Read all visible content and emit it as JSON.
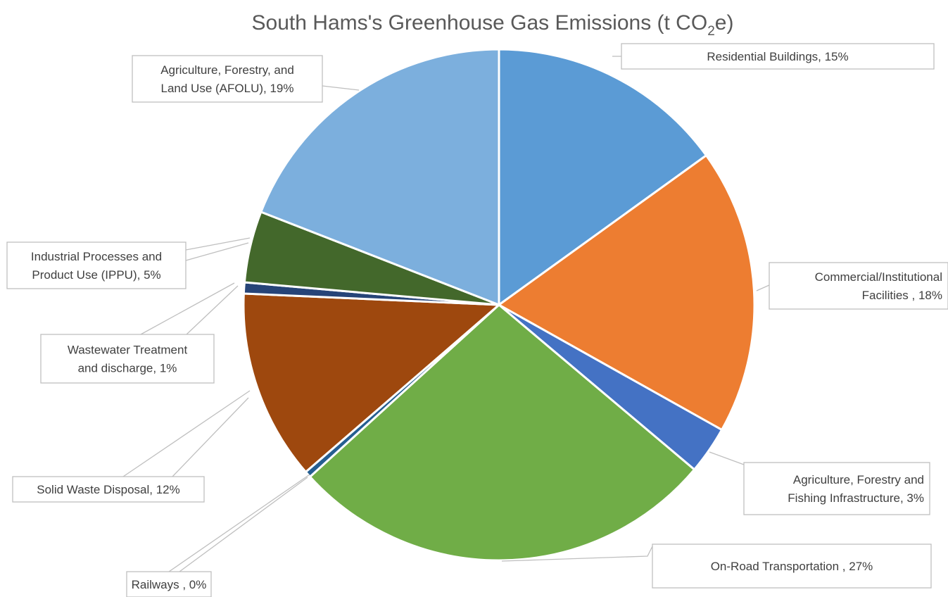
{
  "chart_data": {
    "type": "pie",
    "title": {
      "prefix": "South Hams's Greenhouse Gas Emissions (t CO",
      "subscript": "2",
      "suffix": "e)"
    },
    "slices": [
      {
        "name": "Residential Buildings",
        "value": 15,
        "display": "15%",
        "color": "#5B9BD5"
      },
      {
        "name": "Commercial/Institutional Facilities ",
        "value": 18,
        "display": "18%",
        "color": "#ED7D31"
      },
      {
        "name": "Agriculture, Forestry and Fishing Infrastructure",
        "value": 3,
        "display": "3%",
        "color": "#4472C4"
      },
      {
        "name": "On-Road Transportation ",
        "value": 27,
        "display": "27%",
        "color": "#70AD47"
      },
      {
        "name": "Railways ",
        "value": 0.4,
        "display": "0%",
        "color": "#255E91"
      },
      {
        "name": "Solid Waste Disposal",
        "value": 12,
        "display": "12%",
        "color": "#9E480E"
      },
      {
        "name": "Wastewater Treatment and discharge",
        "value": 0.7,
        "display": "1%",
        "color": "#264478"
      },
      {
        "name": "Industrial Processes and Product Use (IPPU)",
        "value": 4.5,
        "display": "5%",
        "color": "#43682B"
      },
      {
        "name": "Agriculture, Forestry, and Land Use (AFOLU)",
        "value": 19,
        "display": "19%",
        "color": "#7CAFDD"
      }
    ],
    "labels": [
      {
        "lines": [
          "Residential Buildings, 15%"
        ]
      },
      {
        "lines": [
          "Commercial/Institutional",
          "Facilities , 18%"
        ]
      },
      {
        "lines": [
          "Agriculture, Forestry and",
          "Fishing Infrastructure, 3%"
        ]
      },
      {
        "lines": [
          "On-Road Transportation , 27%"
        ]
      },
      {
        "lines": [
          "Railways , 0%"
        ]
      },
      {
        "lines": [
          "Solid Waste Disposal, 12%"
        ]
      },
      {
        "lines": [
          "Wastewater Treatment",
          "and discharge, 1%"
        ]
      },
      {
        "lines": [
          "Industrial Processes and",
          "Product Use (IPPU), 5%"
        ]
      },
      {
        "lines": [
          "Agriculture, Forestry, and",
          "Land Use (AFOLU), 19%"
        ]
      }
    ],
    "legend": "none",
    "start_angle_deg": 0,
    "direction": "clockwise"
  }
}
